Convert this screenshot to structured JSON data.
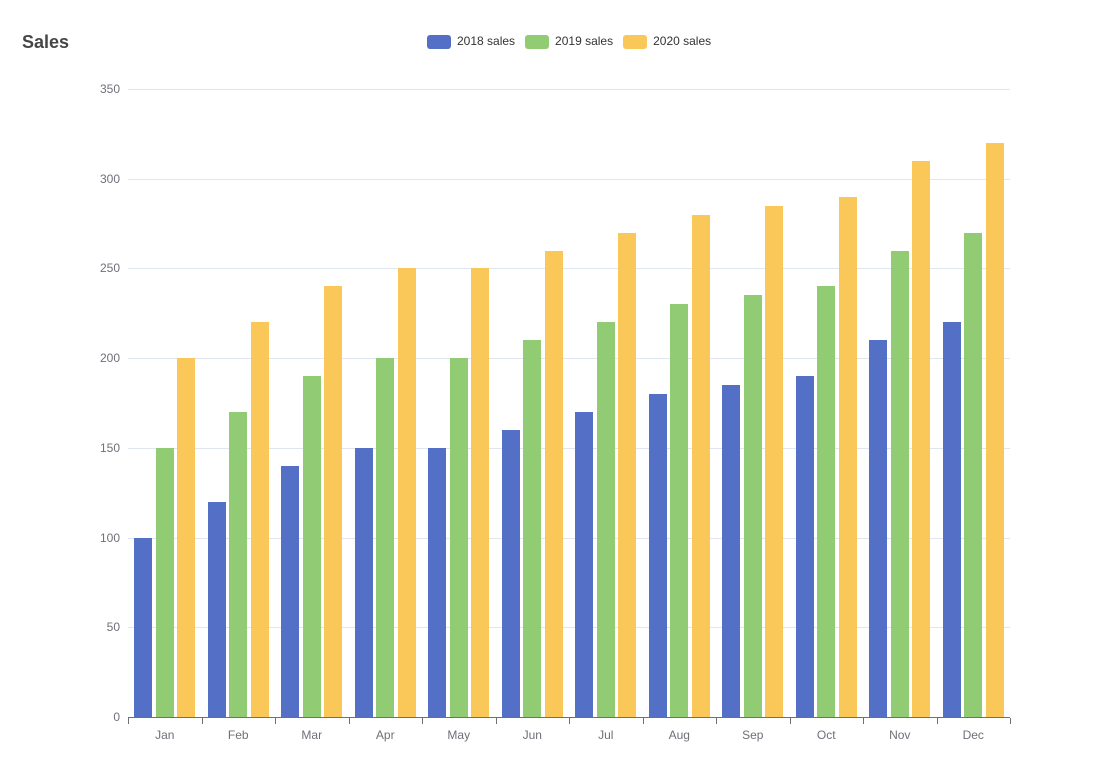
{
  "page": {
    "background_color": "#ffffff"
  },
  "chart_data": {
    "type": "bar",
    "title": "Sales",
    "xlabel": "",
    "ylabel": "",
    "categories": [
      "Jan",
      "Feb",
      "Mar",
      "Apr",
      "May",
      "Jun",
      "Jul",
      "Aug",
      "Sep",
      "Oct",
      "Nov",
      "Dec"
    ],
    "series": [
      {
        "name": "2018 sales",
        "color": "#5470C6",
        "values": [
          100,
          120,
          140,
          150,
          150,
          160,
          170,
          180,
          185,
          190,
          210,
          220
        ]
      },
      {
        "name": "2019 sales",
        "color": "#91CC75",
        "values": [
          150,
          170,
          190,
          200,
          200,
          210,
          220,
          230,
          235,
          240,
          260,
          270
        ]
      },
      {
        "name": "2020 sales",
        "color": "#FAC858",
        "values": [
          200,
          220,
          240,
          250,
          250,
          260,
          270,
          280,
          285,
          290,
          310,
          320
        ]
      }
    ],
    "ylim": [
      0,
      350
    ],
    "y_ticks": [
      0,
      50,
      100,
      150,
      200,
      250,
      300,
      350
    ],
    "grid": true,
    "legend_position": "top-center"
  },
  "style": {
    "grid_color": "#E0E6F1",
    "axis_color": "#6E7079",
    "axis_label_color": "#6E7079",
    "legend_text_color": "#333333",
    "title_color": "#464646"
  }
}
